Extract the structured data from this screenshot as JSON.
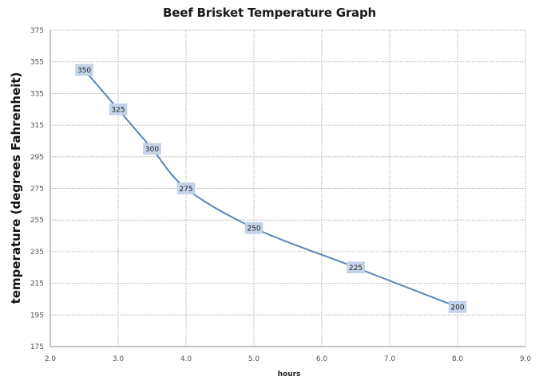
{
  "chart_data": {
    "type": "line",
    "title": "Beef Brisket Temperature Graph",
    "xlabel": "hours",
    "ylabel": "temperature (degrees Fahrenheit)",
    "x": [
      2.5,
      3.0,
      3.5,
      4.0,
      5.0,
      6.5,
      8.0
    ],
    "series": [
      {
        "name": "temperature",
        "values": [
          350,
          325,
          300,
          275,
          250,
          225,
          200
        ],
        "color": "#5b84b9",
        "data_labels": [
          "350",
          "325",
          "300",
          "275",
          "250",
          "225",
          "200"
        ]
      }
    ],
    "xlim": [
      2.0,
      9.0
    ],
    "ylim": [
      175,
      375
    ],
    "x_ticks": [
      "2.0",
      "3.0",
      "4.0",
      "5.0",
      "6.0",
      "7.0",
      "8.0",
      "9.0"
    ],
    "y_ticks": [
      "175",
      "195",
      "215",
      "235",
      "255",
      "275",
      "295",
      "315",
      "335",
      "355",
      "375"
    ],
    "grid": true,
    "grid_style": "dotted",
    "legend": "none",
    "smooth": true
  },
  "colors": {
    "line": "#5b84b9",
    "label_fill": "#c5d3ea",
    "grid": "#9a9a9a",
    "axis": "#a0a0a0"
  }
}
